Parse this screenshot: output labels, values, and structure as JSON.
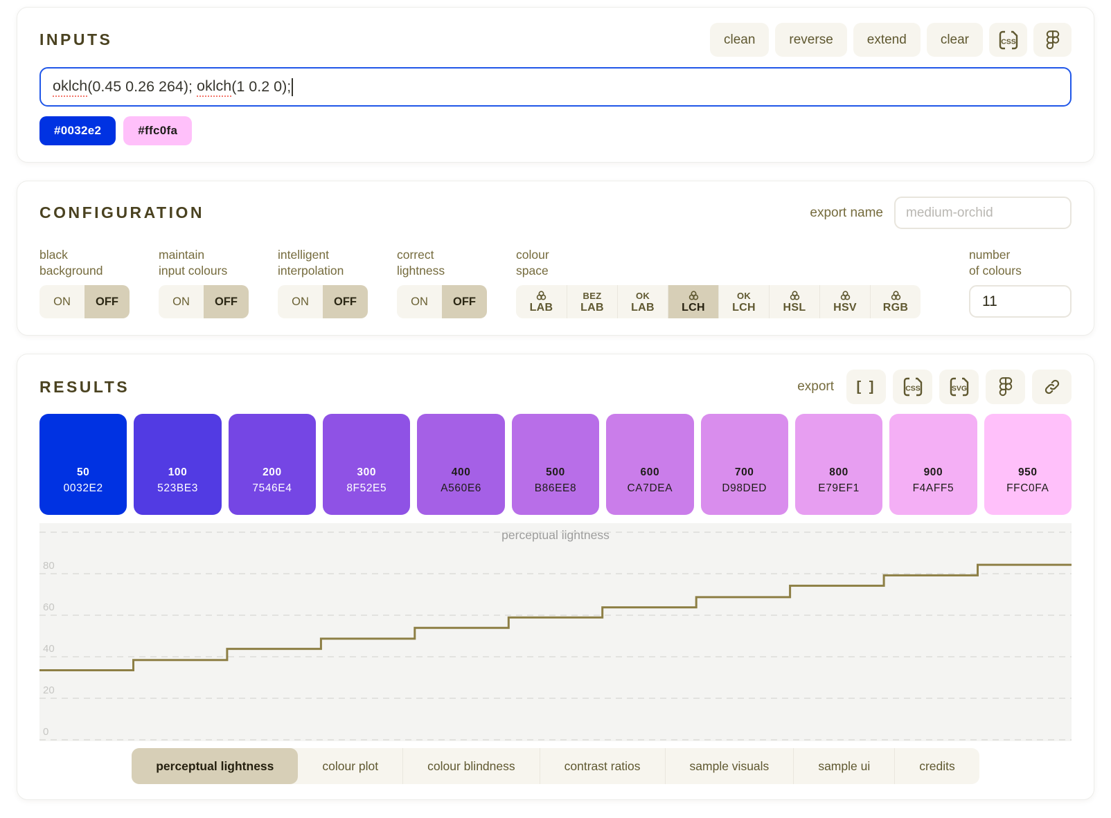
{
  "inputs": {
    "title": "INPUTS",
    "toolbar": [
      "clean",
      "reverse",
      "extend",
      "clear"
    ],
    "field": {
      "segments": [
        {
          "text": "oklch",
          "misspelled": true
        },
        {
          "text": "(0.45 0.26 264); ",
          "misspelled": false
        },
        {
          "text": "oklch",
          "misspelled": true
        },
        {
          "text": "(1 0.2 0);",
          "misspelled": false
        }
      ]
    },
    "chips": [
      {
        "label": "#0032e2",
        "bg": "#0032e2",
        "fg": "#ffffff"
      },
      {
        "label": "#ffc0fa",
        "bg": "#ffc0fa",
        "fg": "#1d1c18"
      }
    ]
  },
  "configuration": {
    "title": "CONFIGURATION",
    "export_name_label": "export name",
    "export_name_placeholder": "medium-orchid",
    "export_name_value": "",
    "toggles": [
      {
        "id": "correct-lightness",
        "label_lines": [
          "correct",
          "lightness"
        ],
        "on": "ON",
        "off": "OFF",
        "state": "off"
      },
      {
        "id": "intelligent-interpolation",
        "label_lines": [
          "intelligent",
          "interpolation"
        ],
        "on": "ON",
        "off": "OFF",
        "state": "off"
      },
      {
        "id": "maintain-input-colours",
        "label_lines": [
          "maintain",
          "input colours"
        ],
        "on": "ON",
        "off": "OFF",
        "state": "off"
      },
      {
        "id": "black-background",
        "label_lines": [
          "black",
          "background"
        ],
        "on": "ON",
        "off": "OFF",
        "state": "off"
      }
    ],
    "colour_space": {
      "label_lines": [
        "colour",
        "space"
      ],
      "options": [
        {
          "top": "icon",
          "name": "LAB",
          "selected": false
        },
        {
          "top": "BEZ",
          "name": "LAB",
          "selected": false
        },
        {
          "top": "OK",
          "name": "LAB",
          "selected": false
        },
        {
          "top": "icon",
          "name": "LCH",
          "selected": true
        },
        {
          "top": "OK",
          "name": "LCH",
          "selected": false
        },
        {
          "top": "icon",
          "name": "HSL",
          "selected": false
        },
        {
          "top": "icon",
          "name": "HSV",
          "selected": false
        },
        {
          "top": "icon",
          "name": "RGB",
          "selected": false
        }
      ]
    },
    "number_of_colours": {
      "label_lines": [
        "number",
        "of colours"
      ],
      "value": "11"
    }
  },
  "results": {
    "title": "RESULTS",
    "export_label": "export",
    "export_buttons": [
      "json-brackets",
      "css-file",
      "svg-file",
      "figma",
      "link"
    ],
    "brackets_glyph": "[ ]",
    "swatches": [
      {
        "step": "50",
        "hex": "0032E2",
        "bg": "#0032E2",
        "fg": "#ffffff"
      },
      {
        "step": "100",
        "hex": "523BE3",
        "bg": "#523BE3",
        "fg": "#ffffff"
      },
      {
        "step": "200",
        "hex": "7546E4",
        "bg": "#7546E4",
        "fg": "#ffffff"
      },
      {
        "step": "300",
        "hex": "8F52E5",
        "bg": "#8F52E5",
        "fg": "#ffffff"
      },
      {
        "step": "400",
        "hex": "A560E6",
        "bg": "#A560E6",
        "fg": "#1d1c18"
      },
      {
        "step": "500",
        "hex": "B86EE8",
        "bg": "#B86EE8",
        "fg": "#1d1c18"
      },
      {
        "step": "600",
        "hex": "CA7DEA",
        "bg": "#CA7DEA",
        "fg": "#1d1c18"
      },
      {
        "step": "700",
        "hex": "D98DED",
        "bg": "#D98DED",
        "fg": "#1d1c18"
      },
      {
        "step": "800",
        "hex": "E79EF1",
        "bg": "#E79EF1",
        "fg": "#1d1c18"
      },
      {
        "step": "900",
        "hex": "F4AFF5",
        "bg": "#F4AFF5",
        "fg": "#1d1c18"
      },
      {
        "step": "950",
        "hex": "FFC0FA",
        "bg": "#FFC0FA",
        "fg": "#1d1c18"
      }
    ],
    "tabs": [
      {
        "label": "perceptual lightness",
        "active": true
      },
      {
        "label": "colour plot",
        "active": false
      },
      {
        "label": "colour blindness",
        "active": false
      },
      {
        "label": "contrast ratios",
        "active": false
      },
      {
        "label": "sample visuals",
        "active": false
      },
      {
        "label": "sample ui",
        "active": false
      },
      {
        "label": "credits",
        "active": false
      }
    ]
  },
  "chart_data": {
    "type": "line",
    "step": true,
    "title": "perceptual lightness",
    "categories": [
      "50",
      "100",
      "200",
      "300",
      "400",
      "500",
      "600",
      "700",
      "800",
      "900",
      "950"
    ],
    "values": [
      33.5,
      38.4,
      43.8,
      48.7,
      53.9,
      58.9,
      63.8,
      68.7,
      74.2,
      79.2,
      84.3
    ],
    "ylim": [
      0,
      100
    ],
    "ytick_labels": [
      0,
      20,
      40,
      60,
      80
    ],
    "gridlines": [
      0,
      20,
      40,
      60,
      80,
      100
    ],
    "grid_style": "dashed horizontal",
    "legend": "none",
    "line_color": "#8d7f45",
    "plot_bg": "#f4f4f2"
  },
  "colors": {
    "heading": "#4a4220",
    "control_text": "#5f5830",
    "label_text": "#756b3d",
    "segment_active_bg": "#d7cfb7",
    "segment_bg": "#f7f5ee",
    "input_focus_border": "#1f56e8",
    "spellcheck_underline": "#f3766a",
    "chart_line": "#8d7f45"
  }
}
